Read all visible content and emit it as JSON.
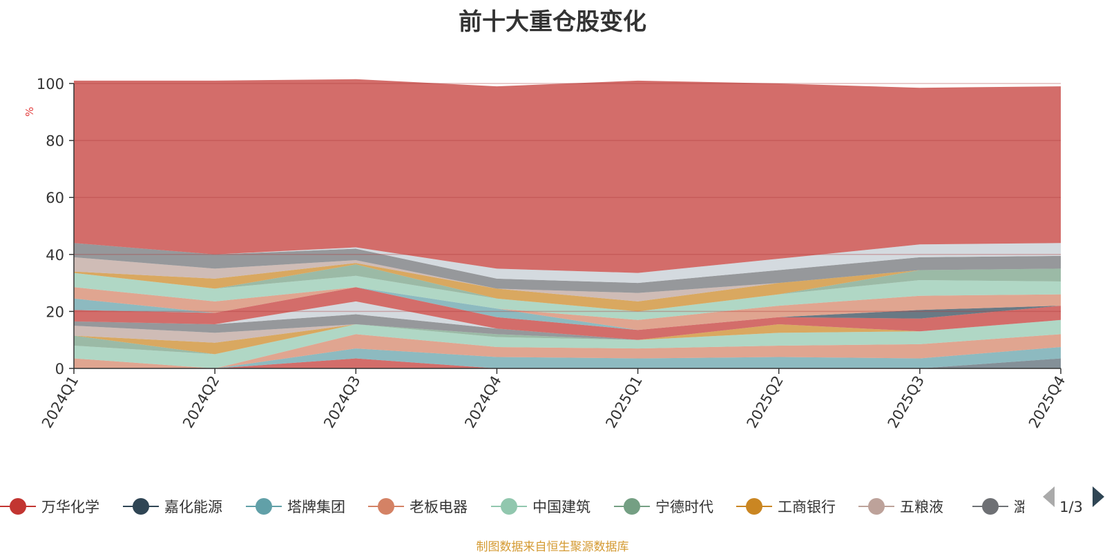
{
  "title": "前十大重仓股变化",
  "source_note": "制图数据来自恒生聚源数据库",
  "legend_pager": "1/3",
  "legend_items": [
    "万华化学",
    "嘉化能源",
    "塔牌集团",
    "老板电器",
    "中国建筑",
    "宁德时代",
    "工商银行",
    "五粮液",
    "潞安环能"
  ],
  "colors": {
    "万华化学": "#c23531",
    "嘉化能源": "#2f4554",
    "塔牌集团": "#61a0a8",
    "老板电器": "#d48265",
    "中国建筑": "#91c7ae",
    "宁德时代": "#749f83",
    "工商银行": "#ca8622",
    "五粮液": "#bda29a",
    "潞安环能": "#6e7074",
    "其他": "#546570",
    "其他2": "#c4ccd3",
    "剩余": "#c23531"
  },
  "chart_data": {
    "type": "area",
    "stacked": true,
    "title": "前十大重仓股变化",
    "ylabel": "%",
    "ylim": [
      0,
      100
    ],
    "yticks": [
      0,
      20,
      40,
      60,
      80,
      100
    ],
    "categories": [
      "2024Q1",
      "2024Q2",
      "2024Q3",
      "2024Q4",
      "2025Q1",
      "2025Q2",
      "2025Q3",
      "2025Q4"
    ],
    "grid": true,
    "legend_position": "bottom",
    "series": [
      {
        "color": "#546570",
        "values": [
          0,
          0,
          0,
          0,
          0,
          0,
          0,
          3.5
        ]
      },
      {
        "color": "#c23531",
        "values": [
          0,
          0,
          3.5,
          0,
          0,
          0,
          0,
          0
        ]
      },
      {
        "color": "#61a0a8",
        "values": [
          0,
          0,
          3.5,
          4,
          3.5,
          4,
          3.5,
          4
        ]
      },
      {
        "color": "#d48265",
        "values": [
          3.5,
          0,
          5,
          3.5,
          3.5,
          4,
          5,
          4.5
        ]
      },
      {
        "color": "#91c7ae",
        "values": [
          4.5,
          5,
          3.5,
          3.5,
          3,
          4.5,
          4.5,
          5
        ]
      },
      {
        "color": "#749f83",
        "values": [
          3.5,
          0,
          0,
          1,
          0,
          0,
          0,
          0
        ]
      },
      {
        "color": "#ca8622",
        "values": [
          0,
          4,
          0,
          0,
          0,
          3,
          0,
          0
        ]
      },
      {
        "color": "#bda29a",
        "values": [
          3.5,
          3.5,
          0,
          0,
          0,
          0,
          0,
          0
        ]
      },
      {
        "color": "#6e7074",
        "values": [
          1.5,
          3,
          3.5,
          2,
          0,
          0,
          0,
          0
        ]
      },
      {
        "color": "#c4ccd3",
        "values": [
          0,
          0,
          4.5,
          0,
          0,
          0,
          0,
          0
        ]
      },
      {
        "color": "#c23531",
        "values": [
          4,
          4,
          5,
          4,
          3.5,
          2.5,
          4.5,
          5
        ]
      },
      {
        "color": "#2f4554",
        "values": [
          0,
          0,
          0,
          0,
          0,
          0,
          3,
          0
        ]
      },
      {
        "color": "#61a0a8",
        "values": [
          4,
          0,
          0,
          3,
          0,
          0,
          0,
          0
        ]
      },
      {
        "color": "#d48265",
        "values": [
          4,
          4,
          0,
          0,
          3.5,
          4,
          5,
          4
        ]
      },
      {
        "color": "#91c7ae",
        "values": [
          5,
          4.5,
          4,
          3.5,
          3,
          4,
          5.5,
          4.5
        ]
      },
      {
        "color": "#749f83",
        "values": [
          0,
          0,
          4,
          0,
          0,
          0,
          3.5,
          4.5
        ]
      },
      {
        "color": "#ca8622",
        "values": [
          0.5,
          3.5,
          0.5,
          3.5,
          3.5,
          4,
          0,
          0
        ]
      },
      {
        "color": "#bda29a",
        "values": [
          5,
          3.5,
          1,
          0,
          3,
          0,
          0,
          0
        ]
      },
      {
        "color": "#6e7074",
        "values": [
          5,
          5,
          4,
          3.5,
          3.5,
          4.5,
          4.5,
          4.5
        ]
      },
      {
        "color": "#c4ccd3",
        "values": [
          0,
          0,
          0.5,
          3.5,
          3.5,
          4,
          4.5,
          4.5
        ]
      },
      {
        "color": "#c23531",
        "values": [
          57,
          61,
          59,
          64,
          67.5,
          61.5,
          55,
          55
        ]
      }
    ]
  }
}
